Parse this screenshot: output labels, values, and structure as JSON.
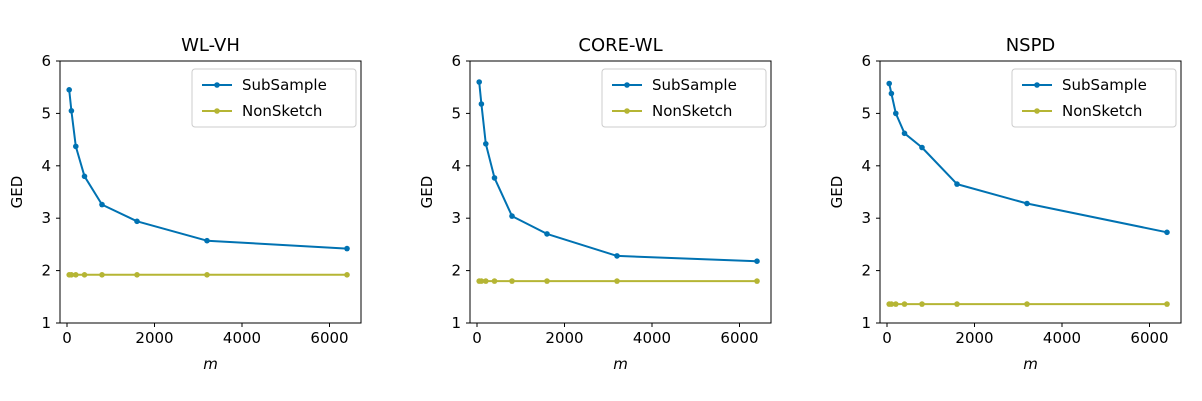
{
  "chart_data": [
    {
      "type": "line",
      "title": "WL-VH",
      "xlabel": "m",
      "ylabel": "GED",
      "xlim": [
        -160,
        6720
      ],
      "ylim": [
        1,
        6
      ],
      "xticks": [
        0,
        2000,
        4000,
        6000
      ],
      "yticks": [
        1,
        2,
        3,
        4,
        5,
        6
      ],
      "legend_position": "upper right",
      "grid": false,
      "x": [
        50,
        100,
        200,
        400,
        800,
        1600,
        3200,
        6400
      ],
      "series": [
        {
          "name": "SubSample",
          "color": "#0072B2",
          "values": [
            5.45,
            5.05,
            4.37,
            3.8,
            3.26,
            2.94,
            2.57,
            2.42
          ]
        },
        {
          "name": "NonSketch",
          "color": "#B5B534",
          "values": [
            1.92,
            1.92,
            1.92,
            1.92,
            1.92,
            1.92,
            1.92,
            1.92
          ]
        }
      ]
    },
    {
      "type": "line",
      "title": "CORE-WL",
      "xlabel": "m",
      "ylabel": "GED",
      "xlim": [
        -160,
        6720
      ],
      "ylim": [
        1,
        6
      ],
      "xticks": [
        0,
        2000,
        4000,
        6000
      ],
      "yticks": [
        1,
        2,
        3,
        4,
        5,
        6
      ],
      "legend_position": "upper right",
      "grid": false,
      "x": [
        50,
        100,
        200,
        400,
        800,
        1600,
        3200,
        6400
      ],
      "series": [
        {
          "name": "SubSample",
          "color": "#0072B2",
          "values": [
            5.6,
            5.18,
            4.42,
            3.77,
            3.04,
            2.7,
            2.28,
            2.18
          ]
        },
        {
          "name": "NonSketch",
          "color": "#B5B534",
          "values": [
            1.8,
            1.8,
            1.8,
            1.8,
            1.8,
            1.8,
            1.8,
            1.8
          ]
        }
      ]
    },
    {
      "type": "line",
      "title": "NSPD",
      "xlabel": "m",
      "ylabel": "GED",
      "xlim": [
        -160,
        6720
      ],
      "ylim": [
        1,
        6
      ],
      "xticks": [
        0,
        2000,
        4000,
        6000
      ],
      "yticks": [
        1,
        2,
        3,
        4,
        5,
        6
      ],
      "legend_position": "upper right",
      "grid": false,
      "x": [
        50,
        100,
        200,
        400,
        800,
        1600,
        3200,
        6400
      ],
      "series": [
        {
          "name": "SubSample",
          "color": "#0072B2",
          "values": [
            5.57,
            5.38,
            5.0,
            4.62,
            4.35,
            3.65,
            3.28,
            2.73
          ]
        },
        {
          "name": "NonSketch",
          "color": "#B5B534",
          "values": [
            1.36,
            1.36,
            1.36,
            1.36,
            1.36,
            1.36,
            1.36,
            1.36
          ]
        }
      ]
    }
  ]
}
